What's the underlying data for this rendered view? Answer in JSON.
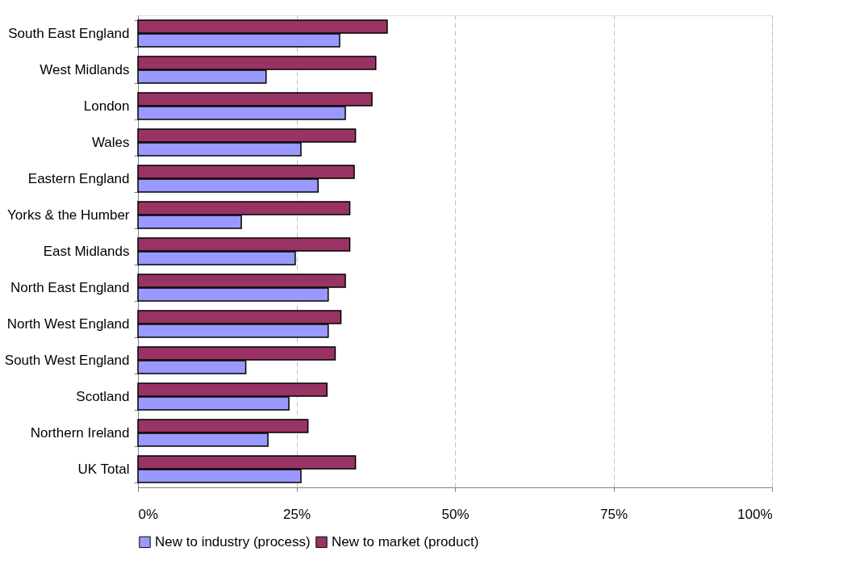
{
  "chart_data": {
    "type": "bar",
    "orientation": "horizontal",
    "categories": [
      "South East England",
      "West Midlands",
      "London",
      "Wales",
      "Eastern England",
      "Yorks & the Humber",
      "East Midlands",
      "North East England",
      "North West England",
      "South West England",
      "Scotland",
      "Northern Ireland",
      "UK Total"
    ],
    "series": [
      {
        "name": "New to industry (process)",
        "color": "#9999ff",
        "values": [
          31.8,
          20.2,
          32.7,
          25.7,
          28.4,
          16.3,
          24.8,
          30.0,
          30.0,
          17.0,
          23.8,
          20.5,
          25.7
        ]
      },
      {
        "name": "New to market (product)",
        "color": "#993366",
        "values": [
          39.3,
          37.5,
          36.9,
          34.3,
          34.1,
          33.4,
          33.4,
          32.7,
          32.0,
          31.1,
          29.8,
          26.8,
          34.3
        ]
      }
    ],
    "xlim": [
      0,
      100
    ],
    "xticks": [
      {
        "value": 0,
        "label": "0%"
      },
      {
        "value": 25,
        "label": "25%"
      },
      {
        "value": 50,
        "label": "50%"
      },
      {
        "value": 75,
        "label": "75%"
      },
      {
        "value": 100,
        "label": "100%"
      }
    ],
    "grid": "x",
    "legend": "bottom"
  }
}
